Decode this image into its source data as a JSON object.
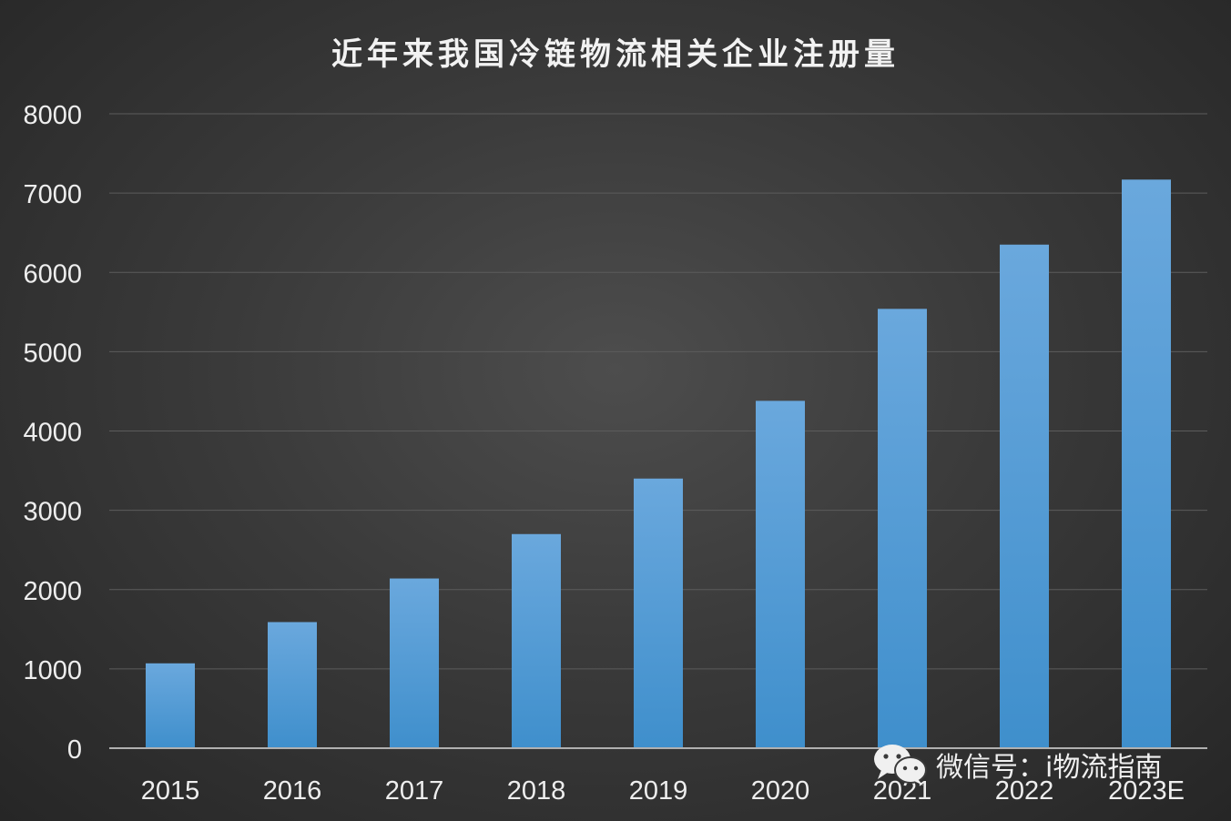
{
  "chart_data": {
    "type": "bar",
    "title": "近年来我国冷链物流相关企业注册量",
    "categories": [
      "2015",
      "2016",
      "2017",
      "2018",
      "2019",
      "2020",
      "2021",
      "2022",
      "2023E"
    ],
    "values": [
      1070,
      1590,
      2140,
      2700,
      3400,
      4380,
      5540,
      6350,
      7170
    ],
    "ylim": [
      0,
      8000
    ],
    "yticks": [
      0,
      1000,
      2000,
      3000,
      4000,
      5000,
      6000,
      7000,
      8000
    ],
    "grid": true,
    "legend": "none",
    "colors": {
      "bar_top": "#6aa8dd",
      "bar_bottom": "#3f8fcc",
      "grid": "#5c5c5c",
      "axis": "#b0b0b0",
      "text": "#eeeeee"
    }
  },
  "watermark": {
    "icon": "wechat-icon",
    "text": "微信号：i物流指南"
  }
}
